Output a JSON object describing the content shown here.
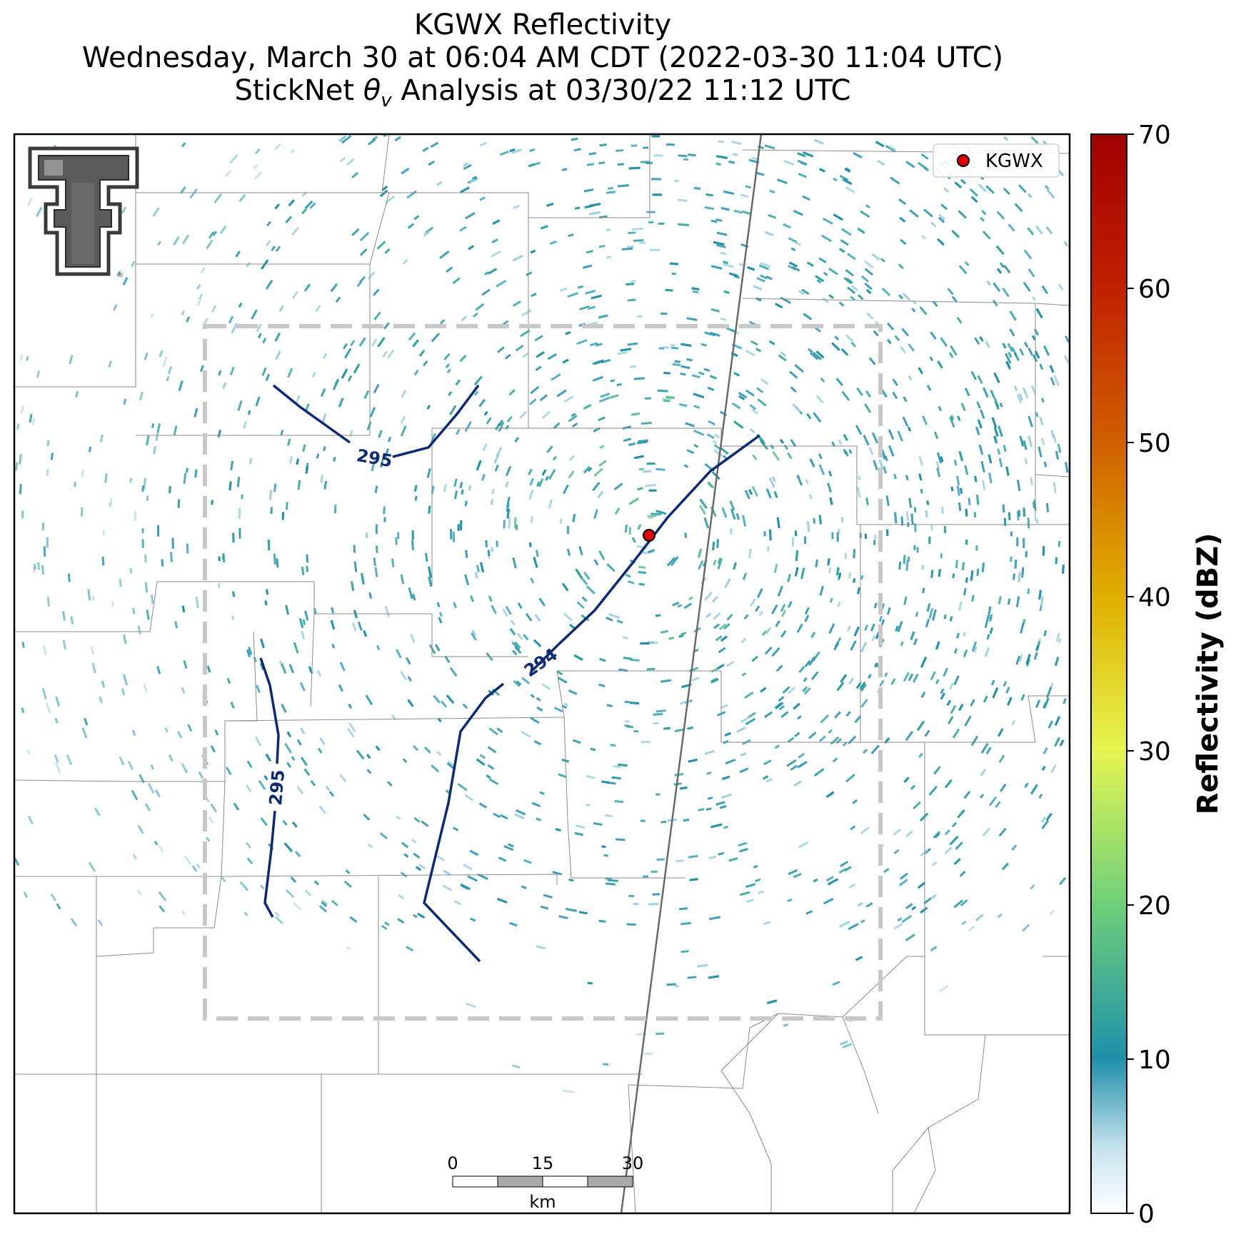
{
  "title": {
    "line1": "KGWX Reflectivity",
    "line2": "Wednesday, March 30 at 06:04 AM CDT (2022-03-30 11:04 UTC)",
    "line3_prefix": "StickNet ",
    "line3_symbol": "θ",
    "line3_sub": "v",
    "line3_suffix": " Analysis at 03/30/22 11:12 UTC"
  },
  "legend": {
    "marker_color": "#e00000",
    "label": "KGWX"
  },
  "colorbar": {
    "label": "Reflectivity (dBZ)",
    "ticks": [
      "0",
      "10",
      "20",
      "30",
      "40",
      "50",
      "60",
      "70"
    ],
    "range": [
      0,
      70
    ],
    "colors": [
      "#ffffff",
      "#1e90aa",
      "#6ed07a",
      "#e6f550",
      "#e0b000",
      "#d06000",
      "#a00000"
    ]
  },
  "contours": [
    {
      "label": "295"
    },
    {
      "label": "294"
    },
    {
      "label": "295"
    }
  ],
  "scale_bar": {
    "ticks": [
      "0",
      "15",
      "30"
    ],
    "unit": "km"
  },
  "logo": {
    "name": "texas-tech-double-t"
  },
  "colors": {
    "contour": "#0d2a78",
    "echo_dark": "#1f8fa9",
    "echo_mid": "#3aa3b8",
    "echo_light": "#9fd0e0",
    "county_line": "#8a8a8a",
    "domain_box": "#c8c8c8",
    "highway": "#6a6a6a"
  }
}
